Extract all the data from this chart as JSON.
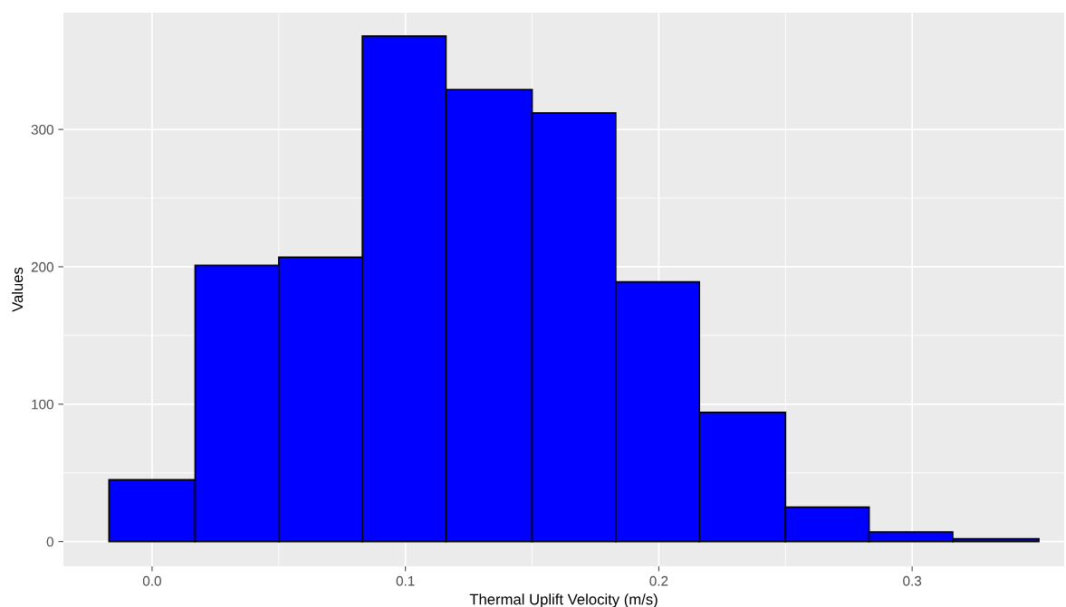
{
  "chart_data": {
    "type": "histogram",
    "xlabel": "Thermal Uplift Velocity (m/s)",
    "ylabel": "Values",
    "bins": [
      -0.017,
      0.017,
      0.05,
      0.083,
      0.116,
      0.15,
      0.183,
      0.216,
      0.25,
      0.283,
      0.316,
      0.35
    ],
    "values": [
      45,
      201,
      207,
      368,
      329,
      312,
      189,
      94,
      25,
      7,
      2
    ],
    "color": "#0000ff",
    "xlim": [
      -0.035,
      0.36
    ],
    "xticks": [
      {
        "value": 0,
        "label": "0.0"
      },
      0.1,
      0.2,
      0.3
    ],
    "ylim": [
      -18,
      385
    ],
    "yticks": [
      0,
      100,
      200,
      300
    ],
    "grid": true
  }
}
